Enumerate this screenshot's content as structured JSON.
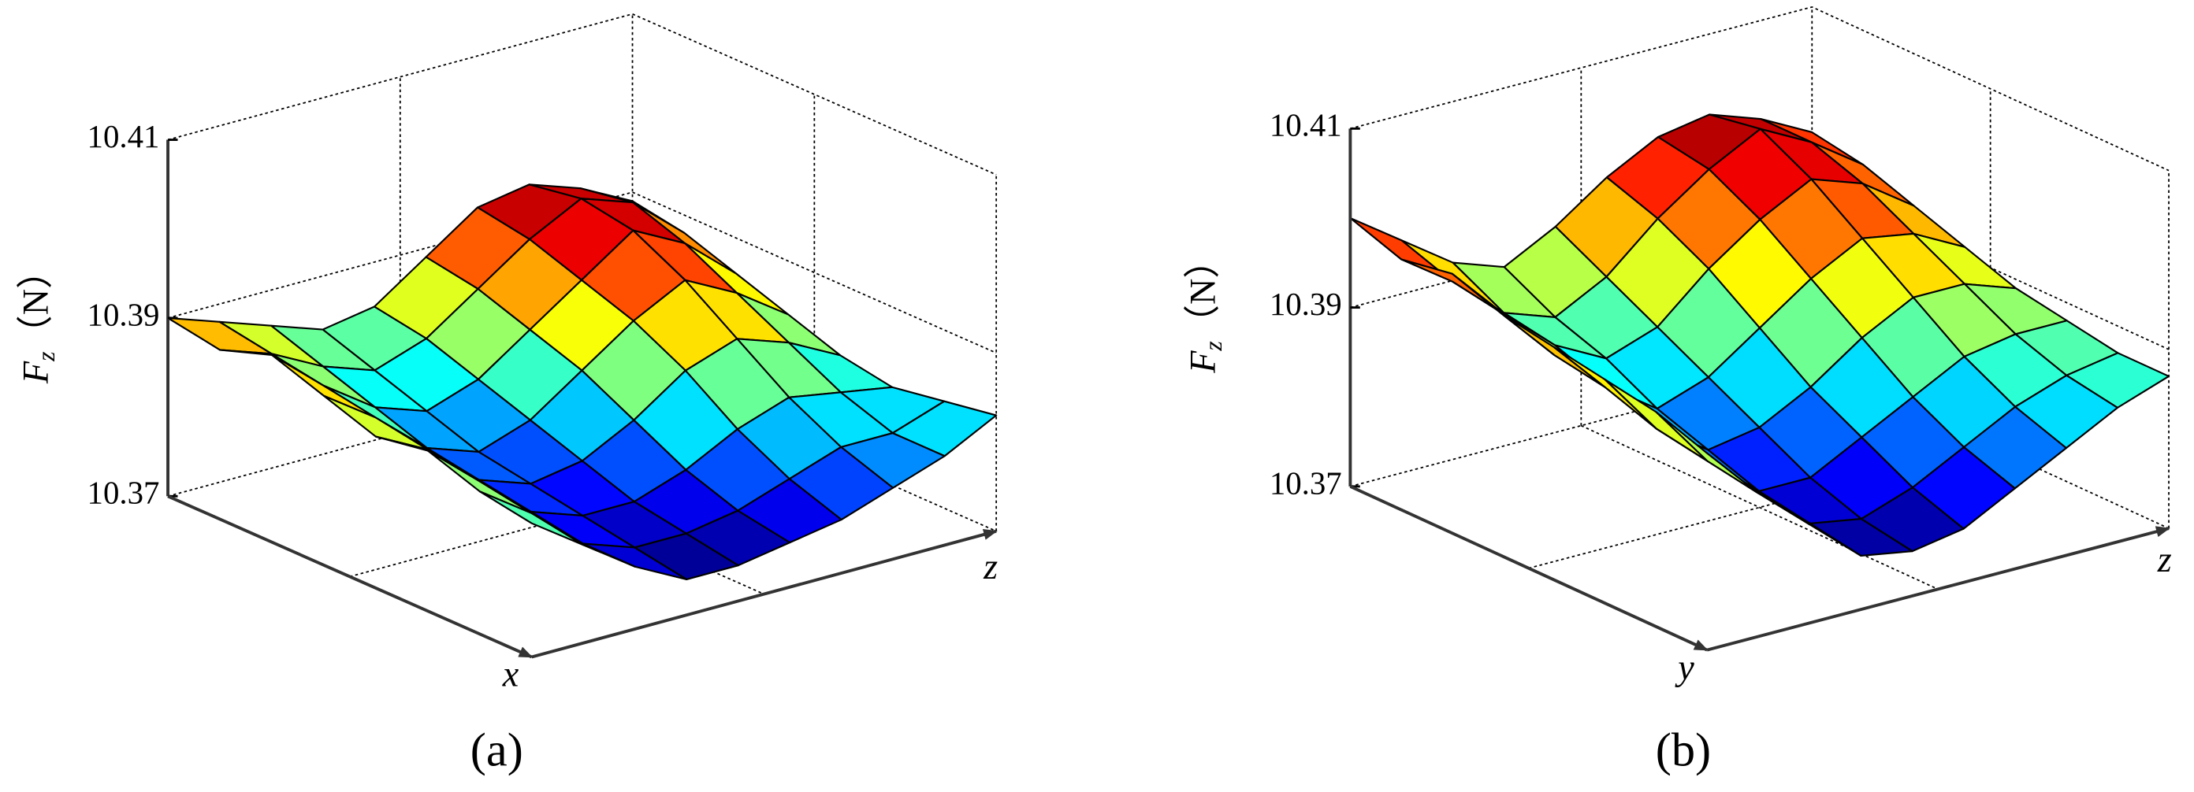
{
  "chart_data": [
    {
      "type": "surface",
      "panel_label": "(a)",
      "xlabel": "x",
      "ylabel": "z",
      "zlabel": [
        "F",
        "z",
        "（N）"
      ],
      "zlim": [
        10.37,
        10.41
      ],
      "zticks": [
        10.37,
        10.39,
        10.41
      ],
      "grid": true,
      "colormap": "jet",
      "z": [
        [
          10.39,
          10.388,
          10.386,
          10.384,
          10.385,
          10.389,
          10.393,
          10.394,
          10.392,
          10.389
        ],
        [
          10.389,
          10.387,
          10.384,
          10.382,
          10.384,
          10.388,
          10.392,
          10.395,
          10.393,
          10.388
        ],
        [
          10.391,
          10.386,
          10.382,
          10.38,
          10.382,
          10.386,
          10.39,
          10.394,
          10.391,
          10.386
        ],
        [
          10.389,
          10.385,
          10.38,
          10.378,
          10.38,
          10.384,
          10.388,
          10.391,
          10.388,
          10.384
        ],
        [
          10.387,
          10.384,
          10.379,
          10.377,
          10.378,
          10.381,
          10.385,
          10.387,
          10.385,
          10.382
        ],
        [
          10.388,
          10.383,
          10.378,
          10.376,
          10.376,
          10.378,
          10.381,
          10.383,
          10.382,
          10.381
        ],
        [
          10.386,
          10.382,
          10.377,
          10.375,
          10.375,
          10.376,
          10.378,
          10.38,
          10.38,
          10.382
        ],
        [
          10.385,
          10.381,
          10.377,
          10.374,
          10.374,
          10.375,
          10.376,
          10.378,
          10.38,
          10.383
        ]
      ]
    },
    {
      "type": "surface",
      "panel_label": "(b)",
      "xlabel": "y",
      "ylabel": "z",
      "zlabel": [
        "F",
        "z",
        "（N）"
      ],
      "zlim": [
        10.37,
        10.41
      ],
      "zticks": [
        10.37,
        10.39,
        10.41
      ],
      "grid": true,
      "colormap": "jet",
      "z": [
        [
          10.4,
          10.396,
          10.392,
          10.39,
          10.393,
          10.397,
          10.4,
          10.401,
          10.399,
          10.396
        ],
        [
          10.398,
          10.394,
          10.389,
          10.387,
          10.39,
          10.395,
          10.399,
          10.402,
          10.399,
          10.395
        ],
        [
          10.399,
          10.393,
          10.388,
          10.385,
          10.387,
          10.392,
          10.396,
          10.399,
          10.397,
          10.393
        ],
        [
          10.397,
          10.391,
          10.386,
          10.382,
          10.384,
          10.388,
          10.392,
          10.395,
          10.394,
          10.391
        ],
        [
          10.396,
          10.39,
          10.384,
          10.38,
          10.381,
          10.384,
          10.388,
          10.391,
          10.391,
          10.389
        ],
        [
          10.395,
          10.388,
          10.383,
          10.378,
          10.378,
          10.381,
          10.384,
          10.387,
          10.388,
          10.388
        ],
        [
          10.394,
          10.387,
          10.382,
          10.377,
          10.376,
          10.378,
          10.381,
          10.384,
          10.386,
          10.387
        ],
        [
          10.392,
          10.386,
          10.381,
          10.376,
          10.375,
          10.376,
          10.379,
          10.382,
          10.385,
          10.387
        ]
      ]
    }
  ]
}
